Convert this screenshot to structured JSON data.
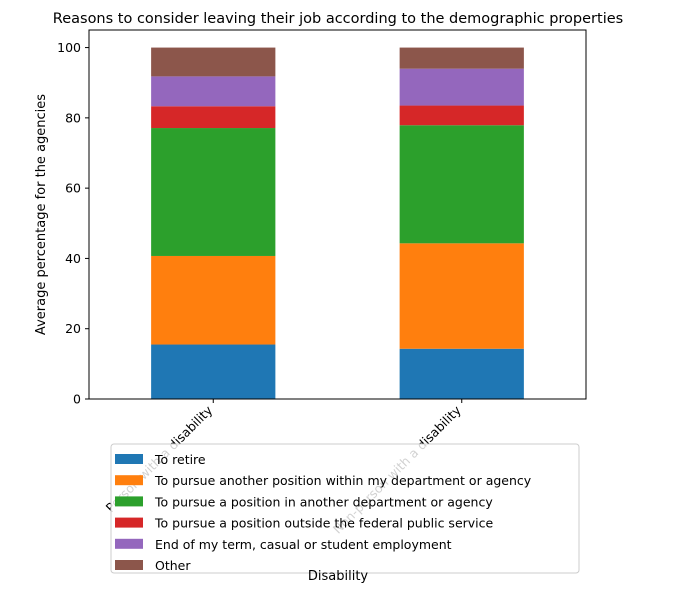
{
  "chart_data": {
    "type": "bar",
    "stacked": true,
    "title": "Reasons to consider leaving their job according to the demographic properties",
    "xlabel": "Disability",
    "ylabel": "Average percentage for the agencies",
    "categories": [
      "Person with a disability",
      "Non-person with a disability"
    ],
    "ylim": [
      0,
      105
    ],
    "yticks": [
      0,
      20,
      40,
      60,
      80,
      100
    ],
    "grid": false,
    "legend_position": "bottom-center",
    "series": [
      {
        "name": "To retire",
        "color": "#1f77b4",
        "values": [
          15.5,
          14.3
        ]
      },
      {
        "name": "To pursue another position within my department or agency",
        "color": "#ff7f0e",
        "values": [
          25.2,
          30.0
        ]
      },
      {
        "name": "To pursue a position in another department or agency",
        "color": "#2ca02c",
        "values": [
          36.4,
          33.6
        ]
      },
      {
        "name": "To pursue a position outside the federal public service",
        "color": "#d62728",
        "values": [
          6.2,
          5.6
        ]
      },
      {
        "name": "End of my term, casual or student employment",
        "color": "#9467bd",
        "values": [
          8.5,
          10.5
        ]
      },
      {
        "name": "Other",
        "color": "#8c564b",
        "values": [
          8.2,
          6.0
        ]
      }
    ]
  }
}
